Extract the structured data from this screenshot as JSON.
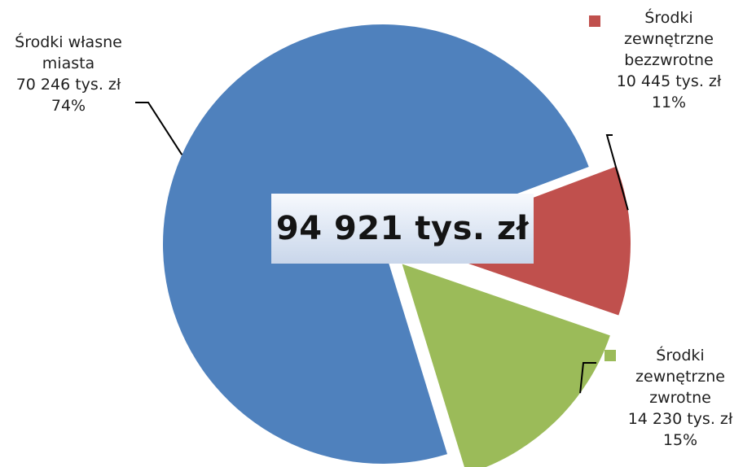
{
  "chart_data": {
    "type": "pie",
    "title": "",
    "total_label": "94 921 tys. zł",
    "slices": [
      {
        "name": "Środki własne miasta",
        "label_lines": [
          "Środki własne",
          "miasta"
        ],
        "value": 70246,
        "value_label": "70 246 tys. zł",
        "percent": 74,
        "percent_label": "74%",
        "color": "#4f81bd",
        "exploded": false
      },
      {
        "name": "Środki zewnętrzne bezzwrotne",
        "label_lines": [
          "Środki",
          "zewnętrzne",
          "bezzwrotne"
        ],
        "value": 10445,
        "value_label": "10 445 tys. zł",
        "percent": 11,
        "percent_label": "11%",
        "color": "#c0504d",
        "exploded": true
      },
      {
        "name": "Środki zewnętrzne zwrotne",
        "label_lines": [
          "Środki",
          "zewnętrzne",
          "zwrotne"
        ],
        "value": 14230,
        "value_label": "14 230 tys. zł",
        "percent": 15,
        "percent_label": "15%",
        "color": "#9bbb59",
        "exploded": true
      }
    ]
  }
}
